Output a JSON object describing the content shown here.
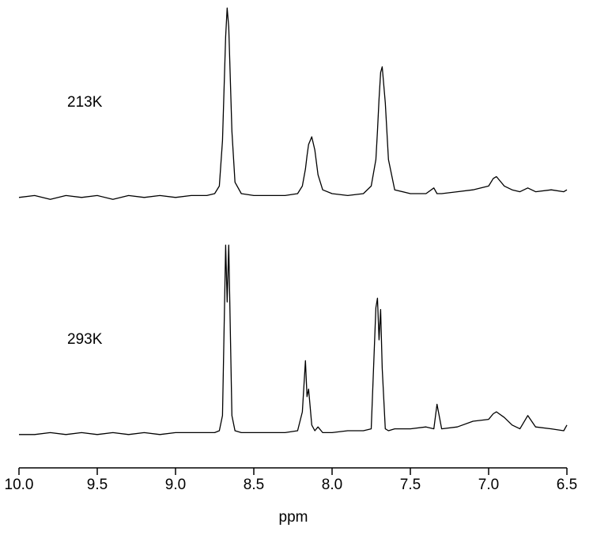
{
  "chart_data": {
    "type": "line",
    "xlabel": "ppm",
    "xlim": [
      10,
      6.5
    ],
    "xticks": [
      {
        "value": 10,
        "label": "10.0"
      },
      9.5,
      {
        "value": 9,
        "label": "9.0"
      },
      8.5,
      {
        "value": 8,
        "label": "8.0"
      },
      7.5,
      {
        "value": 7,
        "label": "7.0"
      },
      6.5
    ],
    "ylim": [
      -3,
      103
    ],
    "x": [
      10.0,
      9.9,
      9.8,
      9.7,
      9.6,
      9.5,
      9.4,
      9.3,
      9.2,
      9.1,
      9.0,
      8.9,
      8.8,
      8.75,
      8.72,
      8.7,
      8.68,
      8.67,
      8.66,
      8.64,
      8.62,
      8.58,
      8.5,
      8.4,
      8.3,
      8.22,
      8.19,
      8.17,
      8.16,
      8.15,
      8.13,
      8.11,
      8.09,
      8.06,
      8.0,
      7.9,
      7.8,
      7.75,
      7.72,
      7.71,
      7.7,
      7.69,
      7.68,
      7.66,
      7.64,
      7.6,
      7.5,
      7.4,
      7.35,
      7.33,
      7.3,
      7.2,
      7.1,
      7.0,
      6.97,
      6.95,
      6.9,
      6.85,
      6.8,
      6.75,
      6.7,
      6.6,
      6.52,
      6.5
    ],
    "series": [
      {
        "name": "213K",
        "color": "#000000",
        "values": [
          0,
          1,
          -1,
          1,
          0,
          1,
          -1,
          1,
          0,
          1,
          0,
          1,
          1,
          2,
          6,
          30,
          85,
          100,
          90,
          35,
          8,
          2,
          1,
          1,
          1,
          2,
          6,
          15,
          22,
          28,
          32,
          25,
          12,
          4,
          2,
          1,
          2,
          6,
          20,
          35,
          52,
          66,
          69,
          50,
          20,
          4,
          2,
          2,
          5,
          2,
          2,
          3,
          4,
          6,
          10,
          11,
          6,
          4,
          3,
          5,
          3,
          4,
          3,
          4
        ]
      },
      {
        "name": "293K",
        "color": "#000000",
        "values": [
          0,
          0,
          1,
          0,
          1,
          0,
          1,
          0,
          1,
          0,
          1,
          1,
          1,
          1,
          2,
          10,
          100,
          70,
          100,
          10,
          2,
          1,
          1,
          1,
          1,
          2,
          12,
          39,
          20,
          24,
          5,
          2,
          4,
          1,
          1,
          2,
          2,
          3,
          67,
          72,
          50,
          66,
          35,
          3,
          2,
          3,
          3,
          4,
          3,
          16,
          3,
          4,
          7,
          8,
          11,
          12,
          9,
          5,
          3,
          10,
          4,
          3,
          2,
          5
        ]
      }
    ]
  }
}
